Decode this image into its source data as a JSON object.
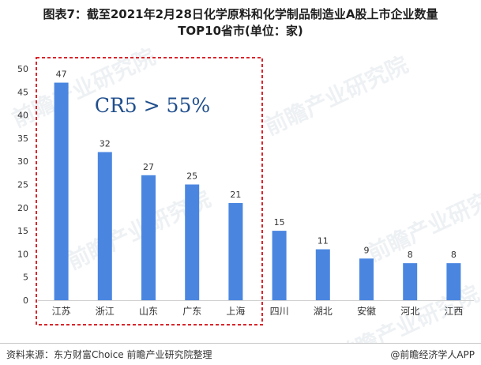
{
  "title": {
    "line1": "图表7：截至2021年2月28日化学原料和化学制品制造业A股上市企业数量",
    "line2": "TOP10省市(单位：家)"
  },
  "annotation": "CR5 > 55%",
  "watermark": "前瞻产业研究院",
  "footer": {
    "source": "资料来源：东方财富Choice 前瞻产业研究院整理",
    "brand": "@前瞻经济学人APP"
  },
  "colors": {
    "bar": "#4a86e0",
    "highlight_box": "#d9262c",
    "annotation": "#1f4e8c"
  },
  "chart_data": {
    "type": "bar",
    "categories": [
      "江苏",
      "浙江",
      "山东",
      "广东",
      "上海",
      "四川",
      "湖北",
      "安徽",
      "河北",
      "江西"
    ],
    "values": [
      47,
      32,
      27,
      25,
      21,
      15,
      11,
      9,
      8,
      8
    ],
    "yticks": [
      0,
      5,
      10,
      15,
      20,
      25,
      30,
      35,
      40,
      45,
      50
    ],
    "ylim": [
      0,
      50
    ],
    "grid": false,
    "highlight_top_n": 5
  }
}
